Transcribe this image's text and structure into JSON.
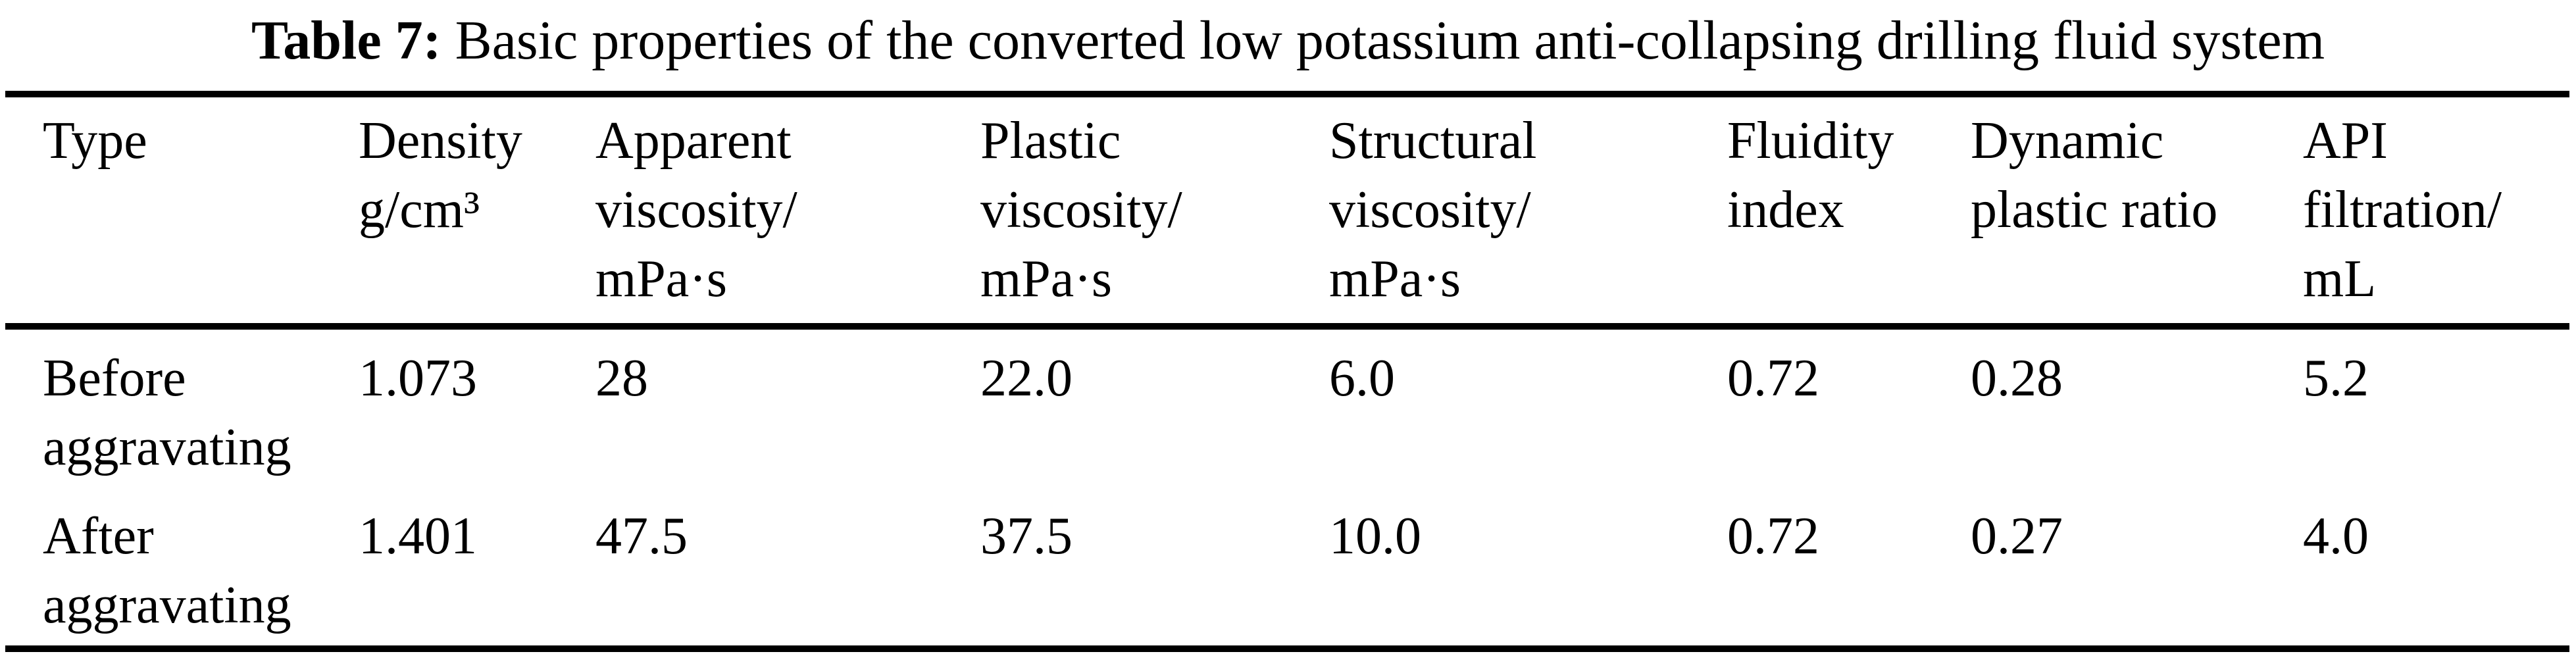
{
  "page": {
    "background": "#ffffff",
    "text_color": "#000000"
  },
  "title": {
    "label": "Table 7:",
    "text": " Basic properties of the converted low potassium anti-collapsing drilling fluid system"
  },
  "table": {
    "columns": [
      {
        "label": "Type"
      },
      {
        "label": "Density\ng/cm³"
      },
      {
        "label": "Apparent\nviscosity/\nmPa·s"
      },
      {
        "label": "Plastic\nviscosity/\nmPa·s"
      },
      {
        "label": "Structural\nviscosity/\nmPa·s"
      },
      {
        "label": "Fluidity\nindex"
      },
      {
        "label": "Dynamic\nplastic ratio"
      },
      {
        "label": "API\nfiltration/\nmL"
      }
    ],
    "rows": [
      {
        "type": "Before\naggravating",
        "values": [
          "1.073",
          "28",
          "22.0",
          "6.0",
          "0.72",
          "0.28",
          "5.2"
        ]
      },
      {
        "type": "After\naggravating",
        "values": [
          "1.401",
          "47.5",
          "37.5",
          "10.0",
          "0.72",
          "0.27",
          "4.0"
        ]
      }
    ]
  },
  "chart_data": {
    "type": "table",
    "title": "Table 7: Basic properties of the converted low potassium anti-collapsing drilling fluid system",
    "columns": [
      "Type",
      "Density g/cm³",
      "Apparent viscosity/ mPa·s",
      "Plastic viscosity/ mPa·s",
      "Structural viscosity/ mPa·s",
      "Fluidity index",
      "Dynamic plastic ratio",
      "API filtration/ mL"
    ],
    "rows": [
      [
        "Before aggravating",
        "1.073",
        "28",
        "22.0",
        "6.0",
        "0.72",
        "0.28",
        "5.2"
      ],
      [
        "After aggravating",
        "1.401",
        "47.5",
        "37.5",
        "10.0",
        "0.72",
        "0.27",
        "4.0"
      ]
    ]
  }
}
